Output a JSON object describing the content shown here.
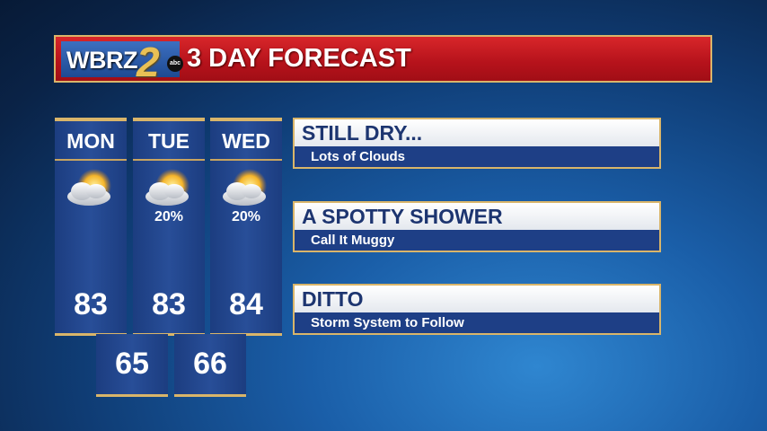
{
  "header": {
    "logo": "WBRZ",
    "logo_number": "2",
    "network": "abc",
    "title": "3 DAY FORECAST"
  },
  "colors": {
    "header_red": "#b5121b",
    "panel_blue": "#1e3f86",
    "gold": "#d9b56a"
  },
  "days": [
    {
      "day": "MON",
      "icon": "partly-cloudy-icon",
      "pop": "",
      "high": "83"
    },
    {
      "day": "TUE",
      "icon": "partly-cloudy-icon",
      "pop": "20%",
      "high": "83"
    },
    {
      "day": "WED",
      "icon": "partly-cloudy-icon",
      "pop": "20%",
      "high": "84"
    }
  ],
  "lows": [
    "65",
    "66"
  ],
  "panels": [
    {
      "headline": "STILL DRY...",
      "sub": "Lots of Clouds"
    },
    {
      "headline": "A SPOTTY SHOWER",
      "sub": "Call It Muggy"
    },
    {
      "headline": "DITTO",
      "sub": "Storm System to Follow"
    }
  ]
}
